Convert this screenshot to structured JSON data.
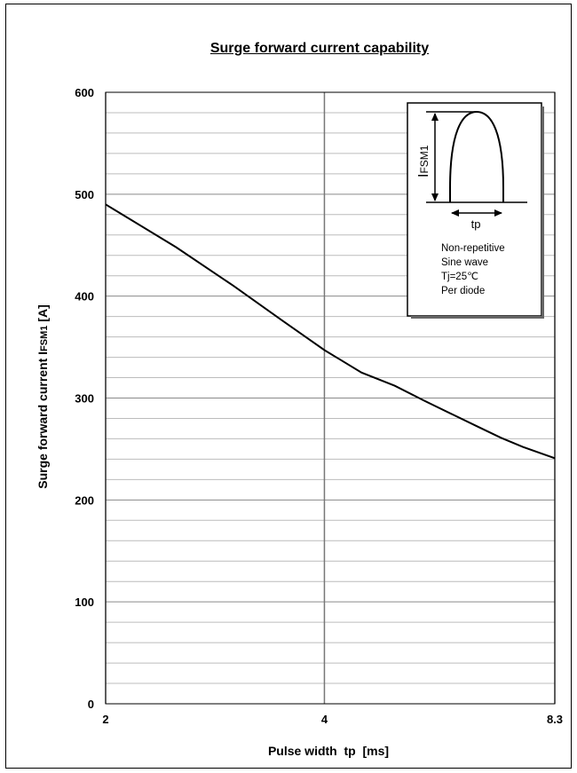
{
  "chart_data": {
    "type": "line",
    "title": "Surge forward current capability",
    "xlabel": "Pulse width  tp  [ms]",
    "ylabel": {
      "prefix": "Surge forward current   I",
      "sub": "FSM1",
      "unit": "[A]"
    },
    "x_scale": "log",
    "xlim": [
      2,
      8.3
    ],
    "ylim": [
      0,
      600
    ],
    "x_ticks": [
      "2",
      "4",
      "8.3"
    ],
    "y_ticks": [
      "0",
      "100",
      "200",
      "300",
      "400",
      "500",
      "600"
    ],
    "series": [
      {
        "x": [
          2,
          2.5,
          3,
          3.5,
          4,
          4.5,
          5,
          5.5,
          6,
          6.5,
          7,
          7.5,
          8.3
        ],
        "y": [
          490,
          448,
          410,
          376,
          347,
          325,
          312,
          297,
          284,
          272,
          261,
          252,
          241
        ]
      }
    ],
    "grid": true,
    "inset": {
      "label_prefix": "I",
      "label_sub": "FSM1",
      "tp_label": "tp",
      "notes": [
        "Non-repetitive",
        "Sine wave",
        "Tj=25℃",
        "Per diode"
      ]
    }
  }
}
